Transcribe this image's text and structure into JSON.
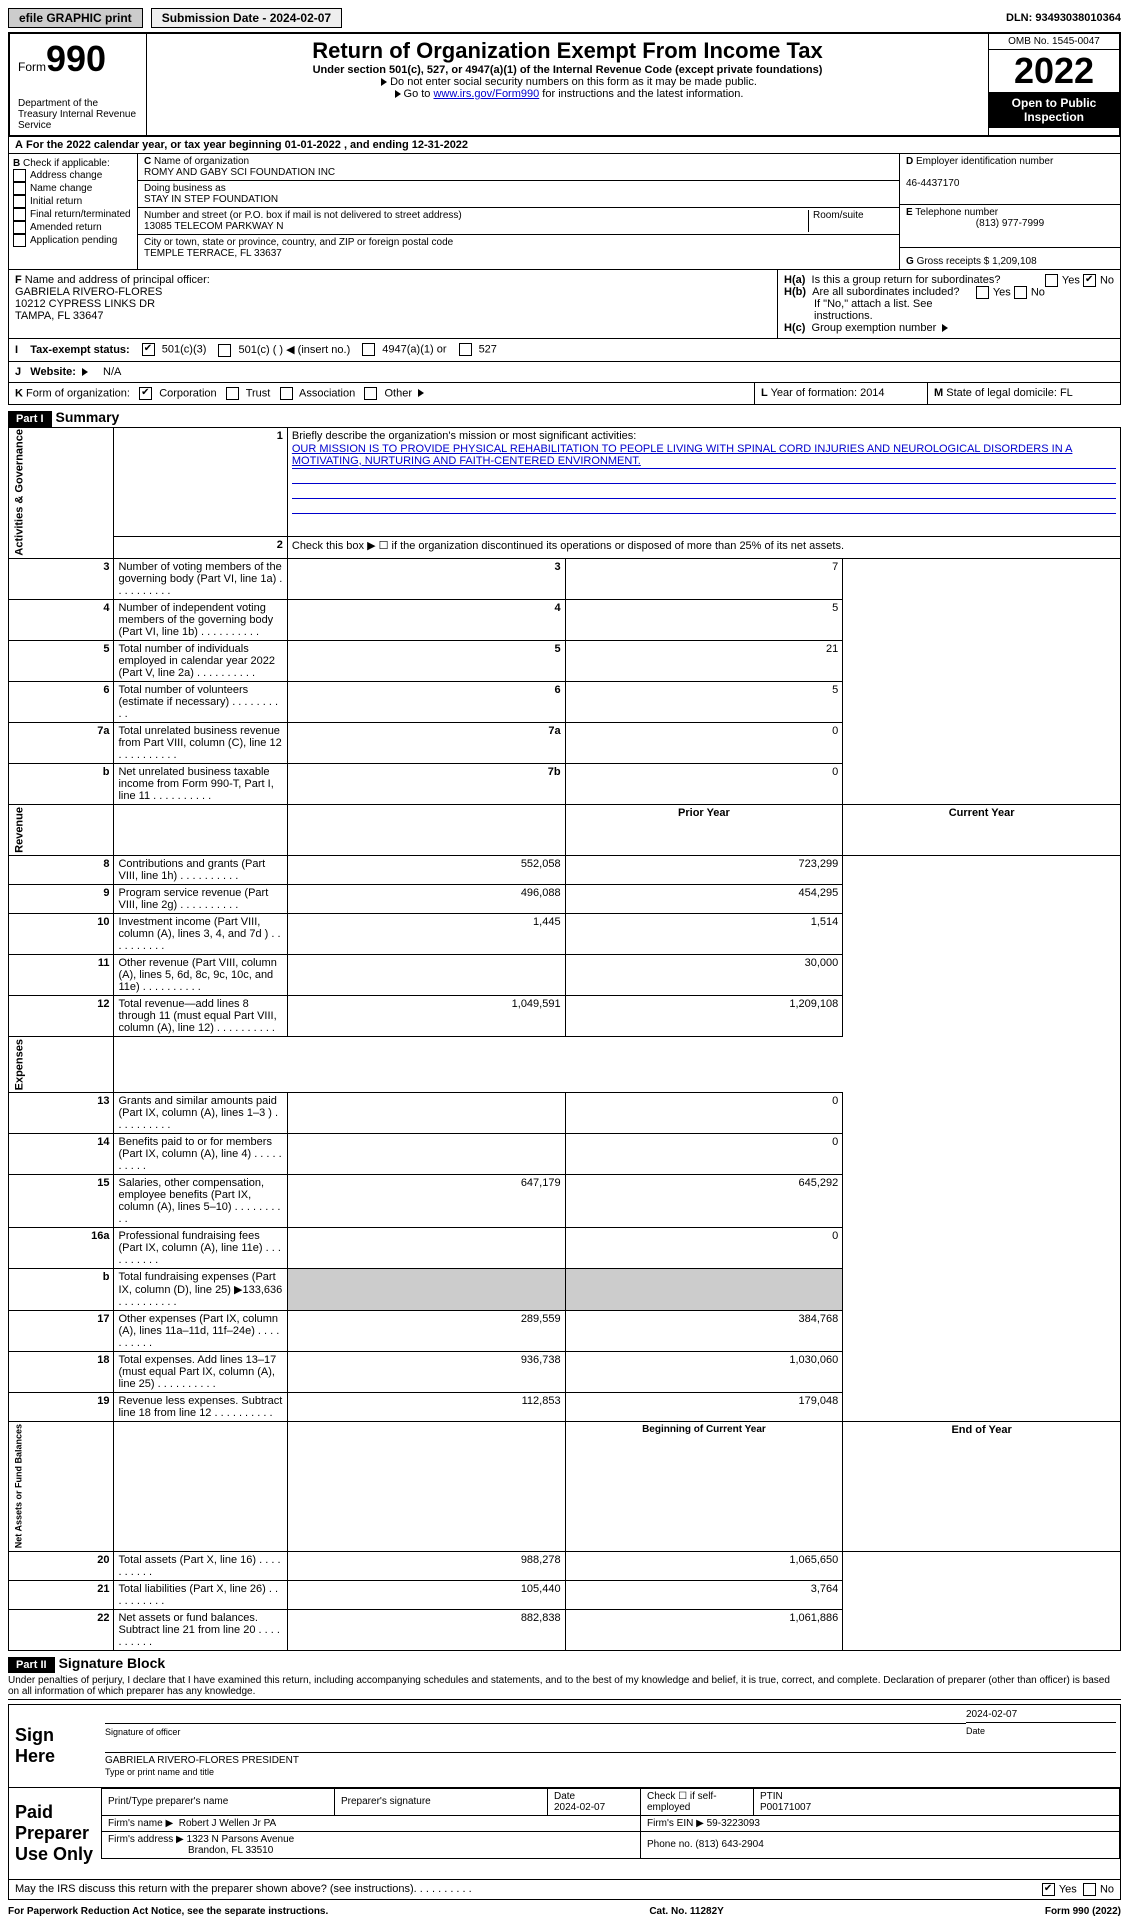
{
  "topbar": {
    "efile": "efile GRAPHIC print",
    "submission": "Submission Date - 2024-02-07",
    "dln": "DLN: 93493038010364"
  },
  "header": {
    "form_label": "Form",
    "form_number": "990",
    "dept": "Department of the Treasury Internal Revenue Service",
    "main_title": "Return of Organization Exempt From Income Tax",
    "sub1": "Under section 501(c), 527, or 4947(a)(1) of the Internal Revenue Code (except private foundations)",
    "note1": "Do not enter social security numbers on this form as it may be made public.",
    "note2_pre": "Go to ",
    "note2_link": "www.irs.gov/Form990",
    "note2_post": " for instructions and the latest information.",
    "omb": "OMB No. 1545-0047",
    "year": "2022",
    "open": "Open to Public Inspection"
  },
  "lineA": "For the 2022 calendar year, or tax year beginning 01-01-2022    , and ending 12-31-2022",
  "colB": {
    "label": "Check if applicable:",
    "opts": [
      "Address change",
      "Name change",
      "Initial return",
      "Final return/terminated",
      "Amended return",
      "Application pending"
    ]
  },
  "colC": {
    "name_label": "Name of organization",
    "name": "ROMY AND GABY SCI FOUNDATION INC",
    "dba_label": "Doing business as",
    "dba": "STAY IN STEP FOUNDATION",
    "street_label": "Number and street (or P.O. box if mail is not delivered to street address)",
    "room_label": "Room/suite",
    "street": "13085 TELECOM PARKWAY N",
    "city_label": "City or town, state or province, country, and ZIP or foreign postal code",
    "city": "TEMPLE TERRACE, FL  33637"
  },
  "colD": {
    "ein_label": "Employer identification number",
    "ein": "46-4437170",
    "phone_label": "Telephone number",
    "phone": "(813) 977-7999",
    "gross_label": "Gross receipts $",
    "gross": "1,209,108"
  },
  "rowF": {
    "label": "Name and address of principal officer:",
    "name": "GABRIELA RIVERO-FLORES",
    "addr1": "10212 CYPRESS LINKS DR",
    "addr2": "TAMPA, FL  33647"
  },
  "rowH": {
    "a": "Is this a group return for subordinates?",
    "b": "Are all subordinates included?",
    "note": "If \"No,\" attach a list. See instructions.",
    "c": "Group exemption number",
    "yes": "Yes",
    "no": "No"
  },
  "lineI": {
    "label": "Tax-exempt status:",
    "opts": [
      "501(c)(3)",
      "501(c) (  ) ◀ (insert no.)",
      "4947(a)(1) or",
      "527"
    ]
  },
  "lineJ": {
    "label": "Website:",
    "val": "N/A"
  },
  "lineK": {
    "label": "Form of organization:",
    "opts": [
      "Corporation",
      "Trust",
      "Association",
      "Other"
    ],
    "L": "Year of formation: 2014",
    "M": "State of legal domicile: FL"
  },
  "parts": {
    "p1": "Part I",
    "p1_title": "Summary",
    "p2": "Part II",
    "p2_title": "Signature Block"
  },
  "summary": {
    "vtabs": [
      "Activities & Governance",
      "Revenue",
      "Expenses",
      "Net Assets or Fund Balances"
    ],
    "q1": "Briefly describe the organization's mission or most significant activities:",
    "mission": "OUR MISSION IS TO PROVIDE PHYSICAL REHABILITATION TO PEOPLE LIVING WITH SPINAL CORD INJURIES AND NEUROLOGICAL DISORDERS IN A MOTIVATING, NURTURING AND FAITH-CENTERED ENVIRONMENT.",
    "q2": "Check this box ▶ ☐  if the organization discontinued its operations or disposed of more than 25% of its net assets.",
    "rows_gov": [
      {
        "n": "3",
        "l": "Number of voting members of the governing body (Part VI, line 1a)",
        "rn": "3",
        "v": "7"
      },
      {
        "n": "4",
        "l": "Number of independent voting members of the governing body (Part VI, line 1b)",
        "rn": "4",
        "v": "5"
      },
      {
        "n": "5",
        "l": "Total number of individuals employed in calendar year 2022 (Part V, line 2a)",
        "rn": "5",
        "v": "21"
      },
      {
        "n": "6",
        "l": "Total number of volunteers (estimate if necessary)",
        "rn": "6",
        "v": "5"
      },
      {
        "n": "7a",
        "l": "Total unrelated business revenue from Part VIII, column (C), line 12",
        "rn": "7a",
        "v": "0"
      },
      {
        "n": "b",
        "l": "Net unrelated business taxable income from Form 990-T, Part I, line 11",
        "rn": "7b",
        "v": "0"
      }
    ],
    "hdr_prior": "Prior Year",
    "hdr_current": "Current Year",
    "rows_rev": [
      {
        "n": "8",
        "l": "Contributions and grants (Part VIII, line 1h)",
        "p": "552,058",
        "c": "723,299"
      },
      {
        "n": "9",
        "l": "Program service revenue (Part VIII, line 2g)",
        "p": "496,088",
        "c": "454,295"
      },
      {
        "n": "10",
        "l": "Investment income (Part VIII, column (A), lines 3, 4, and 7d )",
        "p": "1,445",
        "c": "1,514"
      },
      {
        "n": "11",
        "l": "Other revenue (Part VIII, column (A), lines 5, 6d, 8c, 9c, 10c, and 11e)",
        "p": "",
        "c": "30,000"
      },
      {
        "n": "12",
        "l": "Total revenue—add lines 8 through 11 (must equal Part VIII, column (A), line 12)",
        "p": "1,049,591",
        "c": "1,209,108"
      }
    ],
    "rows_exp": [
      {
        "n": "13",
        "l": "Grants and similar amounts paid (Part IX, column (A), lines 1–3 )",
        "p": "",
        "c": "0"
      },
      {
        "n": "14",
        "l": "Benefits paid to or for members (Part IX, column (A), line 4)",
        "p": "",
        "c": "0"
      },
      {
        "n": "15",
        "l": "Salaries, other compensation, employee benefits (Part IX, column (A), lines 5–10)",
        "p": "647,179",
        "c": "645,292"
      },
      {
        "n": "16a",
        "l": "Professional fundraising fees (Part IX, column (A), line 11e)",
        "p": "",
        "c": "0"
      },
      {
        "n": "b",
        "l": "Total fundraising expenses (Part IX, column (D), line 25) ▶133,636",
        "p": "shaded",
        "c": "shaded"
      },
      {
        "n": "17",
        "l": "Other expenses (Part IX, column (A), lines 11a–11d, 11f–24e)",
        "p": "289,559",
        "c": "384,768"
      },
      {
        "n": "18",
        "l": "Total expenses. Add lines 13–17 (must equal Part IX, column (A), line 25)",
        "p": "936,738",
        "c": "1,030,060"
      },
      {
        "n": "19",
        "l": "Revenue less expenses. Subtract line 18 from line 12",
        "p": "112,853",
        "c": "179,048"
      }
    ],
    "hdr_begin": "Beginning of Current Year",
    "hdr_end": "End of Year",
    "rows_net": [
      {
        "n": "20",
        "l": "Total assets (Part X, line 16)",
        "p": "988,278",
        "c": "1,065,650"
      },
      {
        "n": "21",
        "l": "Total liabilities (Part X, line 26)",
        "p": "105,440",
        "c": "3,764"
      },
      {
        "n": "22",
        "l": "Net assets or fund balances. Subtract line 21 from line 20",
        "p": "882,838",
        "c": "1,061,886"
      }
    ]
  },
  "sig": {
    "perjury": "Under penalties of perjury, I declare that I have examined this return, including accompanying schedules and statements, and to the best of my knowledge and belief, it is true, correct, and complete. Declaration of preparer (other than officer) is based on all information of which preparer has any knowledge.",
    "sign_here": "Sign Here",
    "sig_officer": "Signature of officer",
    "date_label": "Date",
    "sig_date": "2024-02-07",
    "officer_name": "GABRIELA RIVERO-FLORES  PRESIDENT",
    "type_name": "Type or print name and title",
    "paid": "Paid Preparer Use Only",
    "prep_name_label": "Print/Type preparer's name",
    "prep_sig_label": "Preparer's signature",
    "prep_date": "2024-02-07",
    "check_self": "Check ☐ if self-employed",
    "ptin_label": "PTIN",
    "ptin": "P00171007",
    "firm_name_label": "Firm's name   ▶",
    "firm_name": "Robert J Wellen Jr PA",
    "firm_ein_label": "Firm's EIN ▶",
    "firm_ein": "59-3223093",
    "firm_addr_label": "Firm's address ▶",
    "firm_addr1": "1323 N Parsons Avenue",
    "firm_addr2": "Brandon, FL  33510",
    "firm_phone_label": "Phone no.",
    "firm_phone": "(813) 643-2904",
    "discuss": "May the IRS discuss this return with the preparer shown above? (see instructions)"
  },
  "footer": {
    "left": "For Paperwork Reduction Act Notice, see the separate instructions.",
    "mid": "Cat. No. 11282Y",
    "right": "Form 990 (2022)"
  }
}
